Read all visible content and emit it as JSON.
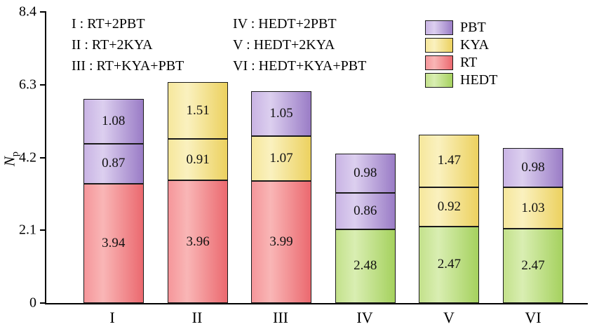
{
  "chart_data": {
    "type": "bar",
    "stacked": true,
    "title": "",
    "ylabel": {
      "base": "N",
      "sub": "p"
    },
    "ylim": [
      0,
      8.4
    ],
    "yticks": [
      0,
      2.1,
      4.2,
      6.3,
      8.4
    ],
    "categories": [
      "I",
      "II",
      "III",
      "IV",
      "V",
      "VI"
    ],
    "grid": false,
    "legend": {
      "position": "top-right",
      "items": [
        {
          "label": "PBT",
          "series": "PBT"
        },
        {
          "label": "KYA",
          "series": "KYA"
        },
        {
          "label": "RT",
          "series": "RT"
        },
        {
          "label": "HEDT",
          "series": "HEDT"
        }
      ]
    },
    "colors": {
      "PBT": {
        "light": "#c9b4e4",
        "mid": "#dccfef",
        "dark": "#9a7cc6"
      },
      "KYA": {
        "light": "#f6e79c",
        "mid": "#faf1bf",
        "dark": "#ecd15f"
      },
      "RT": {
        "light": "#f5969a",
        "mid": "#f9b6b6",
        "dark": "#eb696f"
      },
      "HEDT": {
        "light": "#c3e18b",
        "mid": "#d9eeb2",
        "dark": "#a5d15e"
      }
    },
    "annotations": {
      "col1": [
        "I :  RT+2PBT",
        "II :  RT+2KYA",
        "III :  RT+KYA+PBT"
      ],
      "col2": [
        "IV :  HEDT+2PBT",
        "V :  HEDT+2KYA",
        "VI :  HEDT+KYA+PBT"
      ]
    },
    "bars": [
      {
        "category": "I",
        "segments": [
          {
            "series": "RT",
            "value": 3.94
          },
          {
            "series": "PBT",
            "value": 0.87
          },
          {
            "series": "PBT",
            "value": 1.08
          }
        ]
      },
      {
        "category": "II",
        "segments": [
          {
            "series": "RT",
            "value": 3.96
          },
          {
            "series": "KYA",
            "value": 0.91
          },
          {
            "series": "KYA",
            "value": 1.51
          }
        ]
      },
      {
        "category": "III",
        "segments": [
          {
            "series": "RT",
            "value": 3.99
          },
          {
            "series": "KYA",
            "value": 1.07
          },
          {
            "series": "PBT",
            "value": 1.05
          }
        ]
      },
      {
        "category": "IV",
        "segments": [
          {
            "series": "HEDT",
            "value": 2.48
          },
          {
            "series": "PBT",
            "value": 0.86
          },
          {
            "series": "PBT",
            "value": 0.98
          }
        ]
      },
      {
        "category": "V",
        "segments": [
          {
            "series": "HEDT",
            "value": 2.47
          },
          {
            "series": "KYA",
            "value": 0.92
          },
          {
            "series": "KYA",
            "value": 1.47
          }
        ]
      },
      {
        "category": "VI",
        "segments": [
          {
            "series": "HEDT",
            "value": 2.47
          },
          {
            "series": "KYA",
            "value": 1.03
          },
          {
            "series": "PBT",
            "value": 0.98
          }
        ]
      }
    ]
  }
}
